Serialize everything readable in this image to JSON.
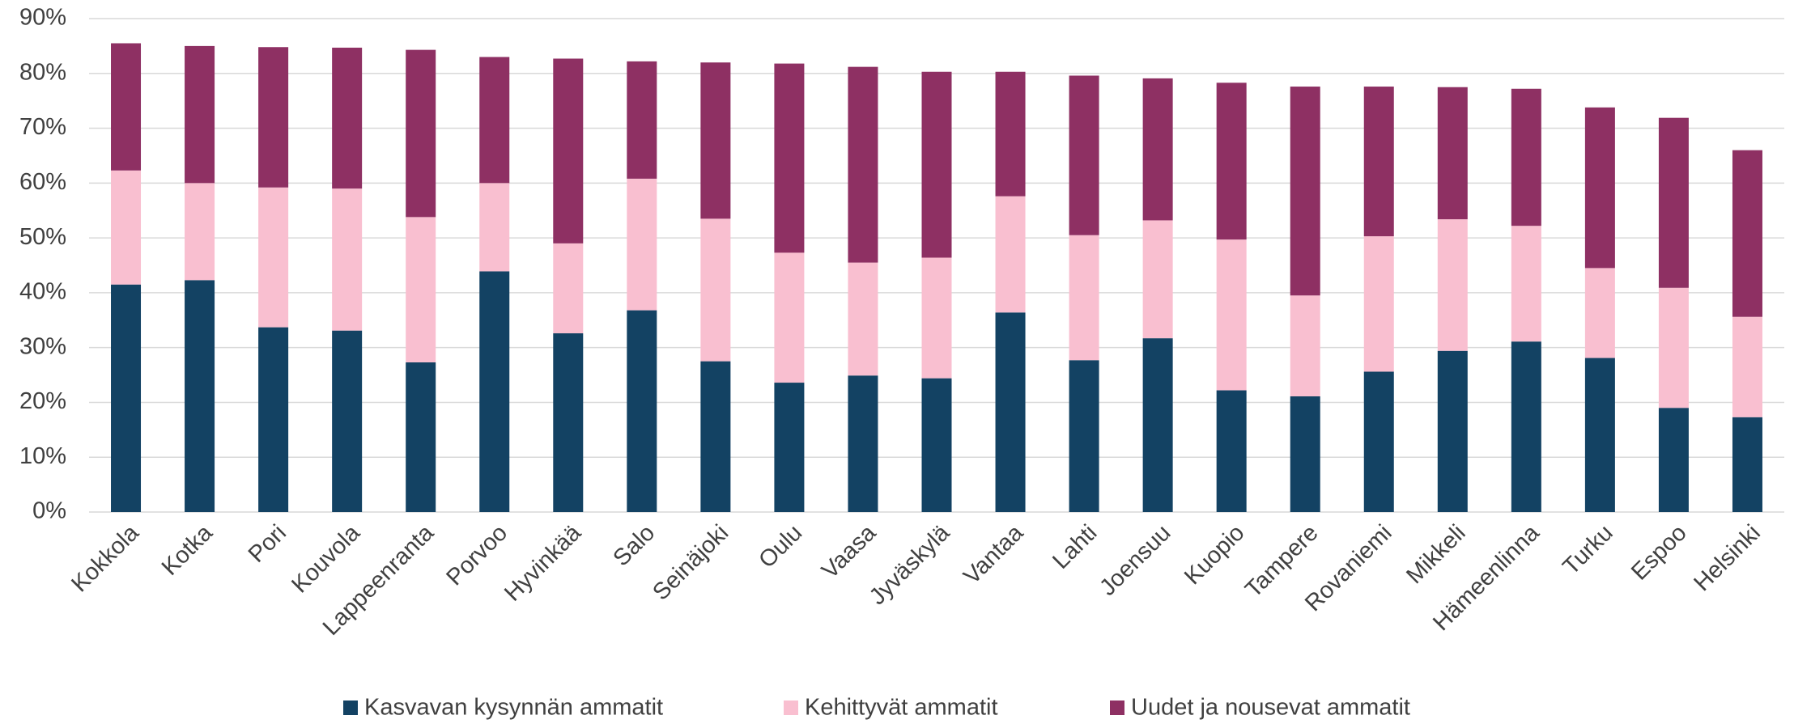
{
  "chart_data": {
    "type": "stacked_bar",
    "categories": [
      "Kokkola",
      "Kotka",
      "Pori",
      "Kouvola",
      "Lappeenranta",
      "Porvoo",
      "Hyvinkää",
      "Salo",
      "Seinäjoki",
      "Oulu",
      "Vaasa",
      "Jyväskylä",
      "Vantaa",
      "Lahti",
      "Joensuu",
      "Kuopio",
      "Tampere",
      "Rovaniemi",
      "Mikkeli",
      "Hämeenlinna",
      "Turku",
      "Espoo",
      "Helsinki"
    ],
    "series": [
      {
        "name": "Kasvavan kysynnän ammatit",
        "color": "#134263",
        "values": [
          41.5,
          42.3,
          33.7,
          33.1,
          27.3,
          43.9,
          32.6,
          36.8,
          27.5,
          23.6,
          24.9,
          24.4,
          36.4,
          27.7,
          31.7,
          22.2,
          21.1,
          25.6,
          29.4,
          31.1,
          28.1,
          19.0,
          17.3
        ]
      },
      {
        "name": "Kehittyvät ammatit",
        "color": "#f9bfd0",
        "values": [
          20.8,
          17.7,
          25.5,
          25.9,
          26.5,
          16.1,
          16.4,
          24.0,
          26.0,
          23.7,
          20.6,
          22.0,
          21.2,
          22.8,
          21.5,
          27.5,
          18.4,
          24.7,
          24.0,
          21.1,
          16.4,
          21.9,
          18.3
        ]
      },
      {
        "name": "Uudet ja nousevat ammatit",
        "color": "#8e3063",
        "values": [
          23.2,
          25.0,
          25.6,
          25.7,
          30.5,
          23.0,
          33.7,
          21.4,
          28.5,
          34.5,
          35.7,
          33.9,
          22.7,
          29.1,
          25.9,
          28.6,
          38.1,
          27.3,
          24.1,
          25.0,
          29.3,
          31.0,
          30.4
        ]
      }
    ],
    "ylim": [
      0,
      90
    ],
    "yticks": [
      {
        "value": 0,
        "label": "0%"
      },
      {
        "value": 10,
        "label": "10%"
      },
      {
        "value": 20,
        "label": "20%"
      },
      {
        "value": 30,
        "label": "30%"
      },
      {
        "value": 40,
        "label": "40%"
      },
      {
        "value": 50,
        "label": "50%"
      },
      {
        "value": 60,
        "label": "60%"
      },
      {
        "value": 70,
        "label": "70%"
      },
      {
        "value": 80,
        "label": "80%"
      },
      {
        "value": 90,
        "label": "90%"
      }
    ],
    "grid": true,
    "legend": "bottom"
  }
}
